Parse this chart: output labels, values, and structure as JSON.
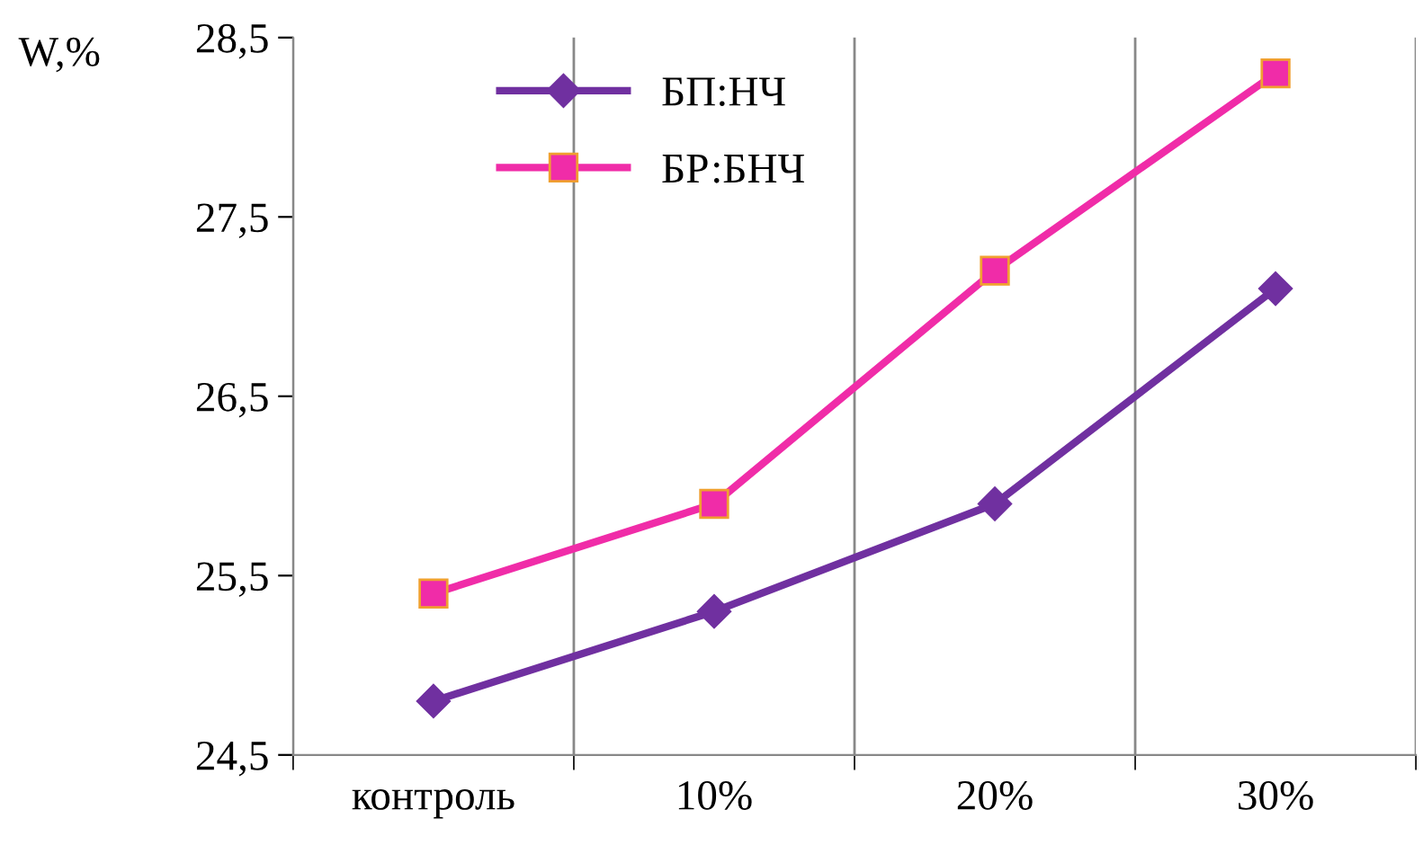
{
  "chart_data": {
    "type": "line",
    "ylabel": "W,%",
    "categories": [
      "контроль",
      "10%",
      "20%",
      "30%"
    ],
    "series": [
      {
        "name": "БП:НЧ",
        "color": "#7030a0",
        "values": [
          24.8,
          25.3,
          25.9,
          27.1
        ],
        "marker": "diamond"
      },
      {
        "name": "БР:БНЧ",
        "color": "#f02ca8",
        "values": [
          25.4,
          25.9,
          27.2,
          28.3
        ],
        "marker": "square"
      }
    ],
    "ylim": [
      24.5,
      28.5
    ],
    "yticks": [
      {
        "value": 24.5,
        "label": "24,5"
      },
      {
        "value": 25.5,
        "label": "25,5"
      },
      {
        "value": 26.5,
        "label": "26,5"
      },
      {
        "value": 27.5,
        "label": "27,5"
      },
      {
        "value": 28.5,
        "label": "28,5"
      }
    ],
    "grid": "x",
    "legend": "top left"
  }
}
